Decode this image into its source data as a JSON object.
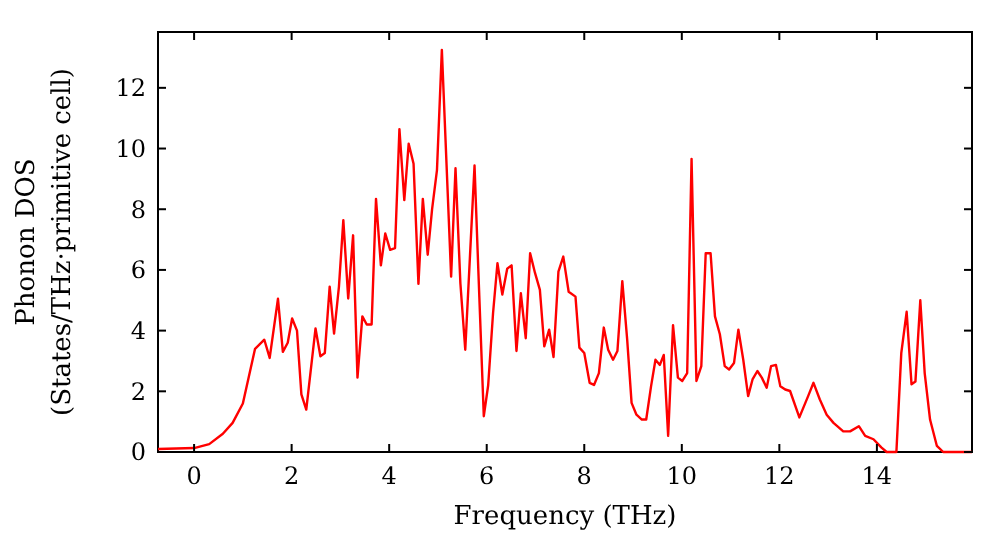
{
  "chart_data": {
    "type": "line",
    "xlabel": "Frequency (THz)",
    "ylabel": "Phonon DOS\n(States/THz·primitive cell)",
    "xlim": [
      -0.74,
      15.95
    ],
    "ylim": [
      0,
      13.84
    ],
    "xticks": [
      0,
      2,
      4,
      6,
      8,
      10,
      12,
      14
    ],
    "yticks": [
      0,
      2,
      4,
      6,
      8,
      10,
      12
    ],
    "grid": false,
    "marker": "none",
    "line_style": "solid",
    "series": [
      {
        "color": "#ff0000",
        "x": [
          -0.74,
          0,
          0.31,
          0.59,
          0.79,
          1.0,
          1.25,
          1.44,
          1.55,
          1.72,
          1.82,
          1.92,
          2.01,
          2.11,
          2.2,
          2.3,
          2.49,
          2.59,
          2.68,
          2.78,
          2.87,
          2.97,
          3.06,
          3.16,
          3.26,
          3.35,
          3.45,
          3.54,
          3.64,
          3.73,
          3.83,
          3.92,
          4.02,
          4.12,
          4.21,
          4.31,
          4.4,
          4.5,
          4.6,
          4.69,
          4.79,
          4.88,
          4.98,
          5.08,
          5.27,
          5.36,
          5.46,
          5.56,
          5.75,
          5.83,
          5.94,
          6.03,
          6.13,
          6.22,
          6.32,
          6.42,
          6.51,
          6.61,
          6.7,
          6.8,
          6.89,
          6.99,
          7.09,
          7.18,
          7.28,
          7.37,
          7.47,
          7.57,
          7.68,
          7.82,
          7.9,
          8.0,
          8.11,
          8.2,
          8.3,
          8.4,
          8.49,
          8.59,
          8.68,
          8.78,
          8.88,
          8.97,
          9.07,
          9.18,
          9.27,
          9.37,
          9.46,
          9.55,
          9.63,
          9.72,
          9.82,
          9.92,
          10.01,
          10.11,
          10.2,
          10.3,
          10.4,
          10.49,
          10.59,
          10.68,
          10.78,
          10.88,
          10.97,
          11.07,
          11.16,
          11.26,
          11.36,
          11.45,
          11.55,
          11.64,
          11.74,
          11.83,
          11.93,
          12.02,
          12.12,
          12.22,
          12.41,
          12.59,
          12.7,
          12.83,
          12.97,
          13.11,
          13.31,
          13.45,
          13.63,
          13.76,
          13.93,
          14.09,
          14.2,
          14.4,
          14.5,
          14.61,
          14.71,
          14.79,
          14.89,
          14.98,
          15.09,
          15.23,
          15.36,
          15.95
        ],
        "values": [
          0.1,
          0.13,
          0.26,
          0.6,
          0.96,
          1.6,
          3.4,
          3.7,
          3.1,
          5.05,
          3.3,
          3.6,
          4.4,
          4.0,
          1.9,
          1.4,
          4.07,
          3.15,
          3.26,
          5.45,
          3.9,
          5.45,
          7.64,
          5.06,
          7.14,
          2.45,
          4.47,
          4.2,
          4.2,
          8.34,
          6.15,
          7.2,
          6.66,
          6.72,
          10.64,
          8.3,
          10.16,
          9.5,
          5.54,
          8.34,
          6.5,
          8.0,
          9.29,
          13.25,
          5.78,
          9.35,
          5.56,
          3.37,
          9.44,
          5.9,
          1.18,
          2.2,
          4.58,
          6.22,
          5.19,
          6.04,
          6.15,
          3.33,
          5.23,
          3.75,
          6.55,
          5.9,
          5.34,
          3.48,
          4.03,
          3.13,
          5.94,
          6.44,
          5.28,
          5.12,
          3.44,
          3.26,
          2.28,
          2.21,
          2.6,
          4.1,
          3.37,
          3.04,
          3.33,
          5.63,
          3.7,
          1.62,
          1.23,
          1.07,
          1.07,
          2.17,
          3.04,
          2.87,
          3.2,
          0.53,
          4.18,
          2.45,
          2.34,
          2.6,
          9.66,
          2.34,
          2.83,
          6.55,
          6.55,
          4.47,
          3.88,
          2.83,
          2.72,
          2.93,
          4.03,
          3.04,
          1.84,
          2.39,
          2.67,
          2.45,
          2.12,
          2.83,
          2.87,
          2.17,
          2.06,
          2.01,
          1.14,
          1.84,
          2.28,
          1.73,
          1.23,
          0.96,
          0.68,
          0.68,
          0.85,
          0.53,
          0.42,
          0.15,
          0,
          0,
          3.26,
          4.62,
          2.23,
          2.32,
          5.0,
          2.6,
          1.07,
          0.2,
          0,
          0
        ]
      }
    ]
  }
}
